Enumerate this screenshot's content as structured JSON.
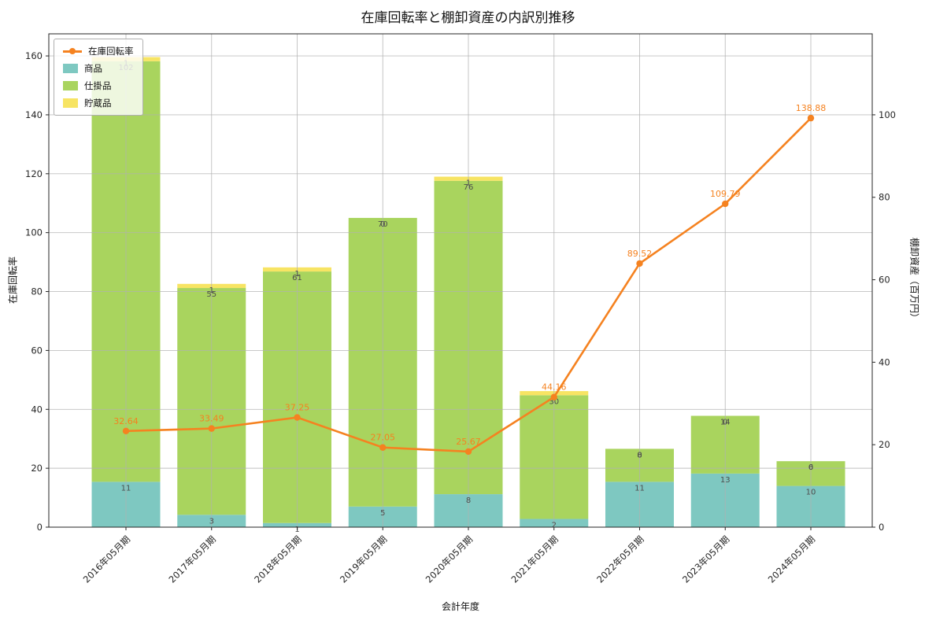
{
  "chart_data": {
    "type": "stacked-bar-line",
    "title": "在庫回転率と棚卸資産の内訳別推移",
    "xlabel": "会計年度",
    "ylabel_left": "在庫回転率",
    "ylabel_right": "棚卸資産（百万円）",
    "categories": [
      "2016年05月期",
      "2017年05月期",
      "2018年05月期",
      "2019年05月期",
      "2020年05月期",
      "2021年05月期",
      "2022年05月期",
      "2023年05月期",
      "2024年05月期"
    ],
    "line_series": {
      "name": "在庫回転率",
      "axis": "left",
      "color": "#f58220",
      "values": [
        32.64,
        33.49,
        37.25,
        27.05,
        25.67,
        44.16,
        89.52,
        109.79,
        138.88
      ]
    },
    "bar_series": [
      {
        "name": "商品",
        "color": "#7ec8c1",
        "values": [
          11,
          3,
          1,
          5,
          8,
          2,
          11,
          13,
          10
        ]
      },
      {
        "name": "仕掛品",
        "color": "#a9d45e",
        "values": [
          102,
          55,
          61,
          70,
          76,
          30,
          8,
          14,
          6
        ]
      },
      {
        "name": "貯蔵品",
        "color": "#f7e463",
        "values": [
          1,
          1,
          1,
          0,
          1,
          1,
          0,
          0,
          0
        ]
      }
    ],
    "axes": {
      "left": {
        "label": "在庫回転率",
        "min": 0,
        "max": 167.5,
        "ticks": [
          0,
          20,
          40,
          60,
          80,
          100,
          120,
          140,
          160
        ]
      },
      "right": {
        "label": "棚卸資産（百万円）",
        "min": 0,
        "max": 119.64,
        "ticks": [
          0,
          20,
          40,
          60,
          80,
          100
        ]
      }
    },
    "grid": true,
    "legend": {
      "position": "upper-left",
      "entries": [
        "在庫回転率",
        "商品",
        "仕掛品",
        "貯蔵品"
      ]
    },
    "colors": {
      "grid": "#b0b0b0",
      "bar_label": "#4d4d4d",
      "tick_label": "#262626",
      "frame": "#262626"
    }
  }
}
